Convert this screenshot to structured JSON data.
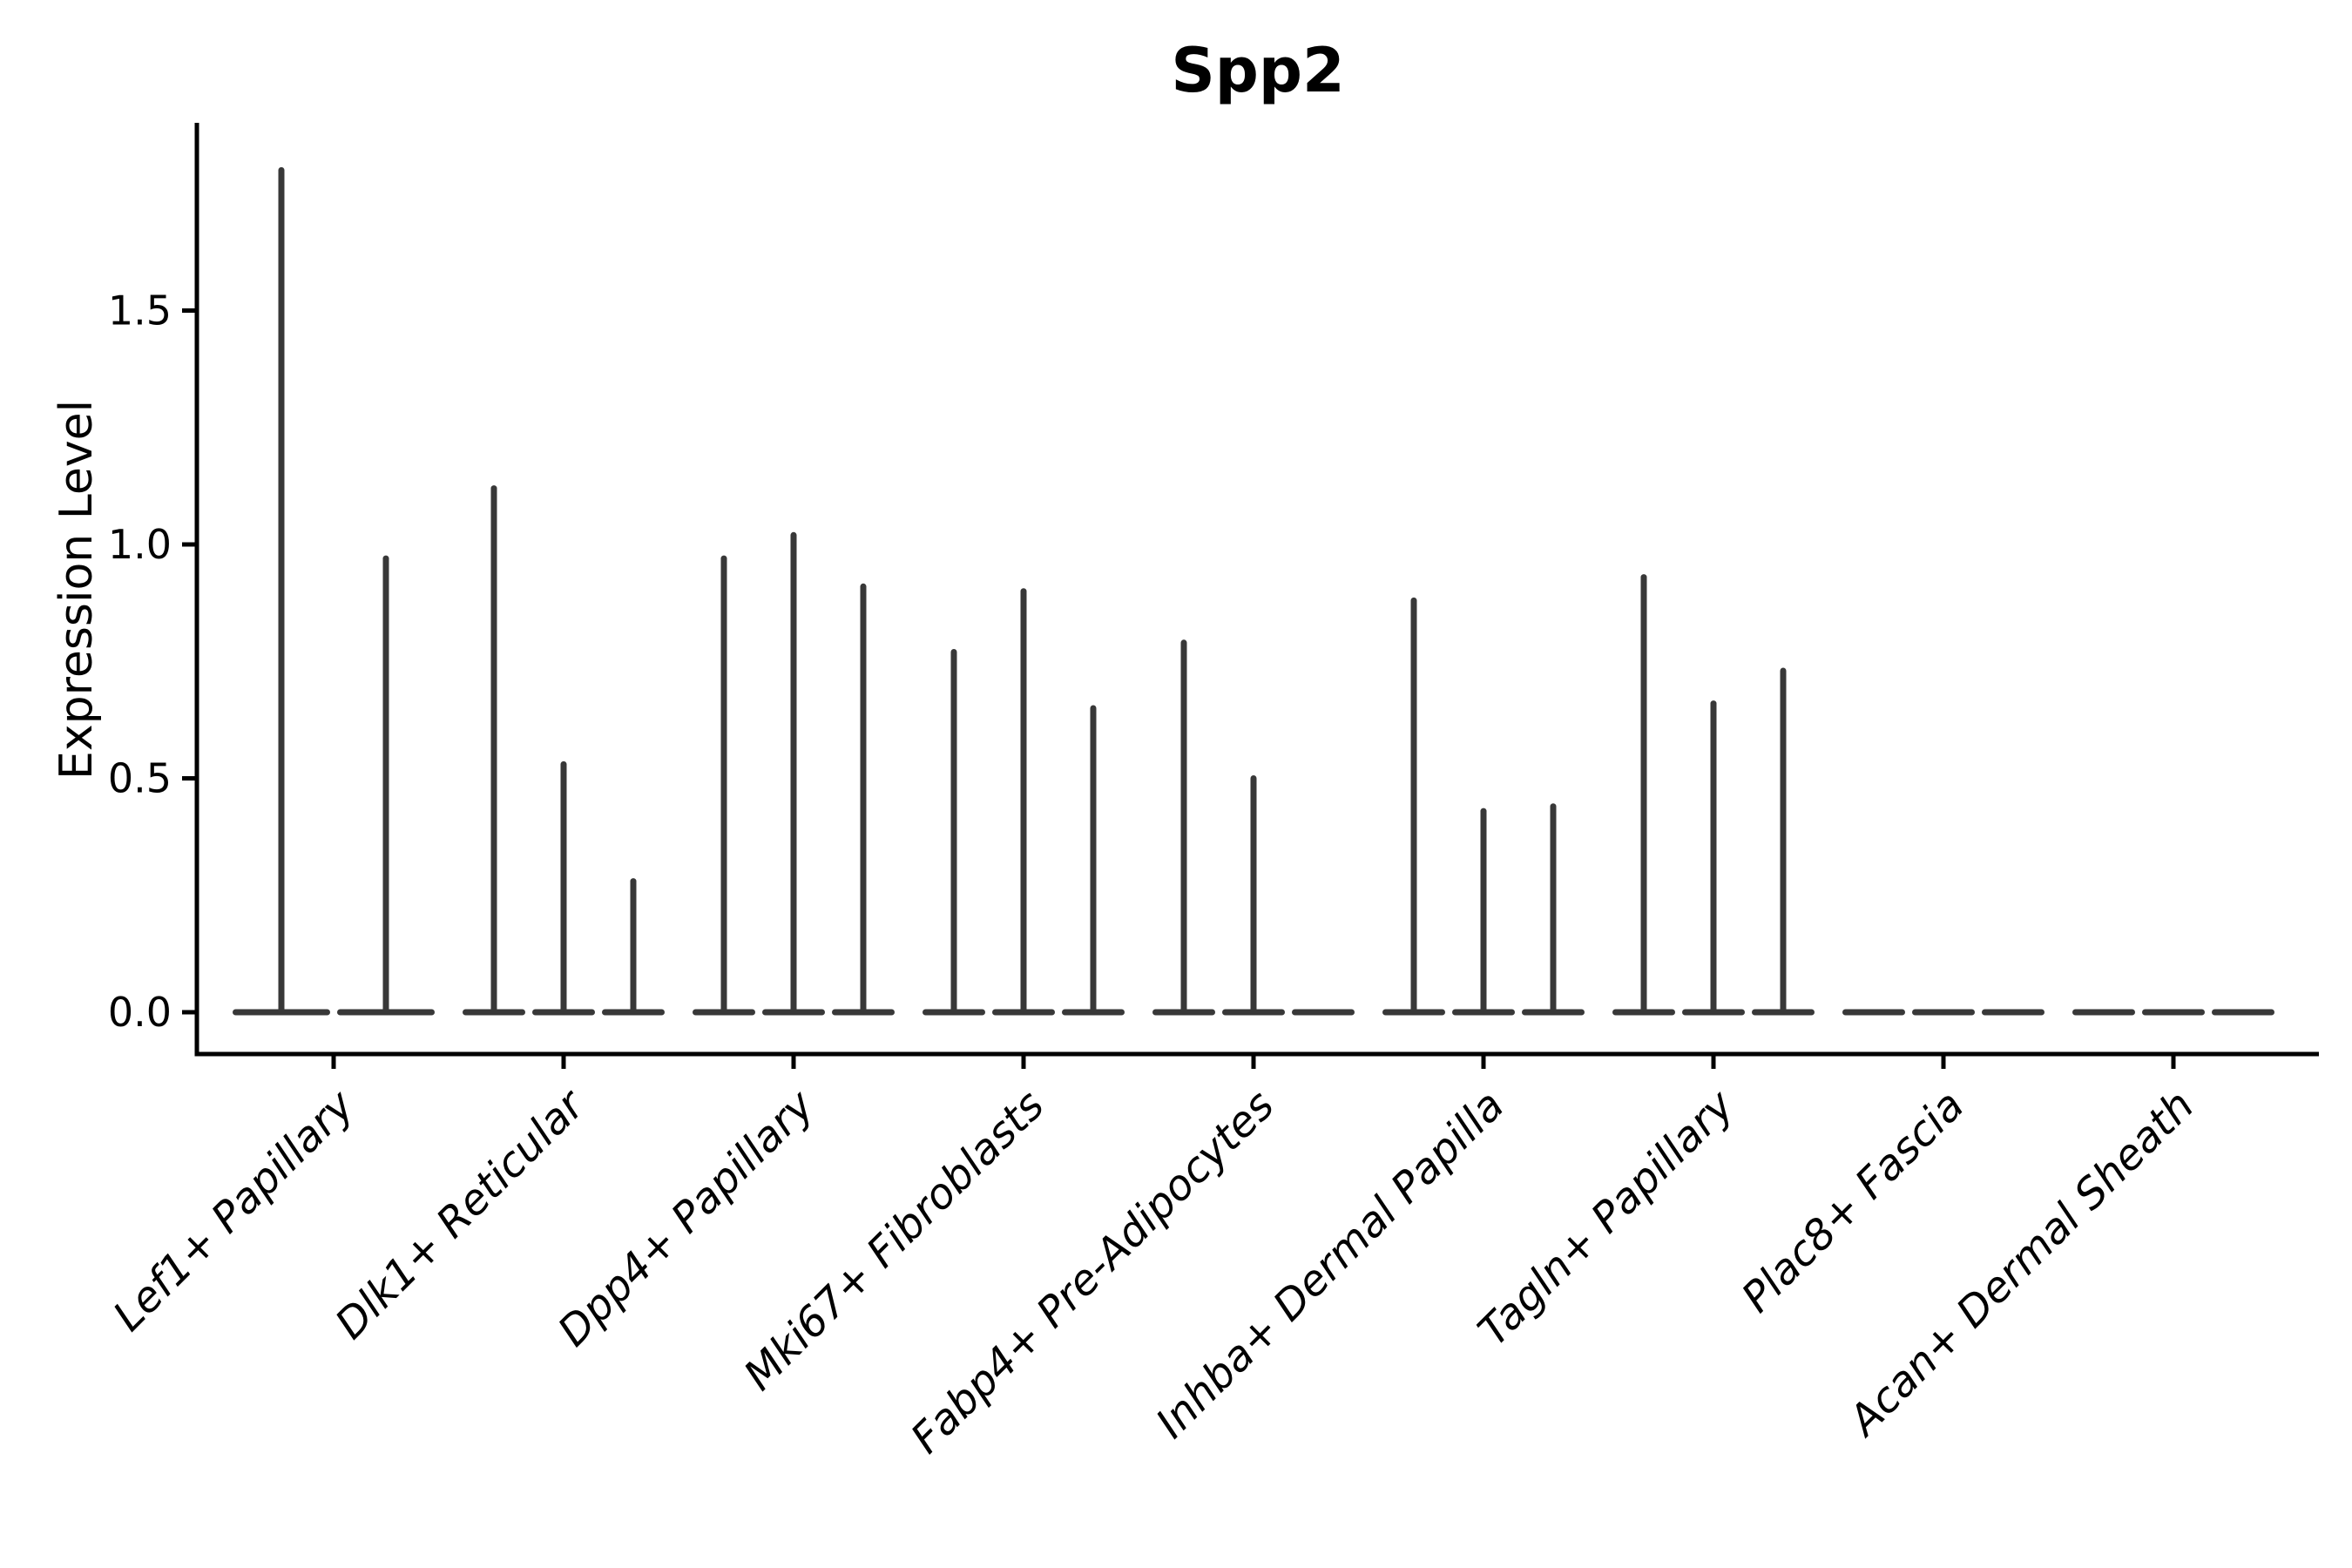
{
  "title": "Spp2",
  "ylabel": "Expression Level",
  "chart_data": {
    "type": "violin",
    "title": "Spp2",
    "xlabel": "",
    "ylabel": "Expression Level",
    "ylim": [
      -0.09,
      1.9
    ],
    "yticks": [
      0.0,
      0.5,
      1.0,
      1.5
    ],
    "ytick_labels": [
      "0.0",
      "0.5",
      "1.0",
      "1.5"
    ],
    "grid": false,
    "legend": "none",
    "categories": [
      "Lef1+ Papillary",
      "Dlk1+ Reticular",
      "Dpp4+ Papillary",
      "Mki67+ Fibroblasts",
      "Fabp4+ Pre-Adipocytes",
      "Inhba+ Dermal Papilla",
      "Tagln+ Papillary",
      "Plac8+ Fascia",
      "Acan+ Dermal Sheath"
    ],
    "groups": [
      {
        "label": "Lef1+ Papillary",
        "violin_max_values": [
          1.8,
          0.97
        ]
      },
      {
        "label": "Dlk1+ Reticular",
        "violin_max_values": [
          1.12,
          0.53,
          0.28
        ]
      },
      {
        "label": "Dpp4+ Papillary",
        "violin_max_values": [
          0.97,
          1.02,
          0.91
        ]
      },
      {
        "label": "Mki67+ Fibroblasts",
        "violin_max_values": [
          0.77,
          0.9,
          0.65
        ]
      },
      {
        "label": "Fabp4+ Pre-Adipocytes",
        "violin_max_values": [
          0.79,
          0.5,
          0.0
        ]
      },
      {
        "label": "Inhba+ Dermal Papilla",
        "violin_max_values": [
          0.88,
          0.43,
          0.44
        ]
      },
      {
        "label": "Tagln+ Papillary",
        "violin_max_values": [
          0.93,
          0.66,
          0.73
        ]
      },
      {
        "label": "Plac8+ Fascia",
        "violin_max_values": [
          0.0,
          0.0,
          0.0
        ]
      },
      {
        "label": "Acan+ Dermal Sheath",
        "violin_max_values": [
          0.0,
          0.0,
          0.0
        ]
      }
    ],
    "colors": {
      "violin": "#383838",
      "axis": "#000000",
      "background": "#ffffff"
    }
  }
}
